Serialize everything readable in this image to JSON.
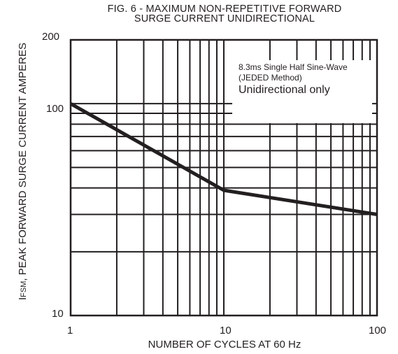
{
  "chart_data": {
    "type": "line",
    "title_line1": "FIG. 6 - MAXIMUM NON-REPETITIVE FORWARD",
    "title_line2": "SURGE CURRENT UNIDIRECTIONAL",
    "ylabel_prefix": "I",
    "ylabel_sub": "FSM",
    "ylabel_rest": ", PEAK FORWARD SURGE CURRENT AMPERES",
    "xlabel": "NUMBER OF CYCLES AT 60 Hz",
    "x_scale": "log",
    "y_scale": "log",
    "xlim": [
      1,
      100
    ],
    "ylim": [
      10,
      200
    ],
    "x_ticks": [
      "1",
      "10",
      "100"
    ],
    "y_ticks": [
      "200",
      "100",
      "10"
    ],
    "grid": true,
    "annotations": [
      "8.3ms Single Half Sine-Wave",
      "(JEDED Method)",
      "Unidirectional only"
    ],
    "series": [
      {
        "x": [
          1,
          10,
          100
        ],
        "y": [
          100,
          39,
          30
        ]
      }
    ]
  }
}
